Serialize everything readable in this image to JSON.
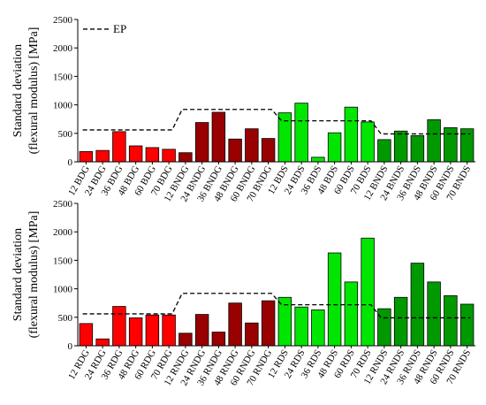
{
  "chart_data": [
    {
      "type": "bar",
      "ylabel_line1": "Standard deviation",
      "ylabel_line2": "(flexural modulus) [MPa]",
      "ylim": [
        0,
        2500
      ],
      "yticks": [
        0,
        500,
        1000,
        1500,
        2000,
        2500
      ],
      "legend": {
        "label": "EP",
        "placement": "top-left"
      },
      "grid": false,
      "categories": [
        "12 BDG",
        "24 BDG",
        "36 BDG",
        "48 BDG",
        "60 BDG",
        "70 BDG",
        "12 BNDG",
        "24 BNDG",
        "36 BNDG",
        "48 BNDG",
        "60 BNDG",
        "70 BNDG",
        "12 BDS",
        "24 BDS",
        "36 BDS",
        "48 BDS",
        "60 BDS",
        "70 BDS",
        "12 BNDS",
        "24 BNDS",
        "36 BNDS",
        "48 BNDS",
        "60 BNDS",
        "70 BNDS"
      ],
      "values": [
        180,
        200,
        530,
        280,
        250,
        220,
        160,
        690,
        870,
        400,
        580,
        410,
        860,
        1030,
        80,
        510,
        960,
        700,
        390,
        540,
        460,
        740,
        600,
        580
      ],
      "colors": [
        "#ff0000",
        "#ff0000",
        "#ff0000",
        "#ff0000",
        "#ff0000",
        "#ff0000",
        "#990000",
        "#990000",
        "#990000",
        "#990000",
        "#990000",
        "#990000",
        "#00e600",
        "#00e600",
        "#00e600",
        "#00e600",
        "#00e600",
        "#00e600",
        "#009900",
        "#009900",
        "#009900",
        "#009900",
        "#009900",
        "#009900"
      ],
      "ep_steps": [
        {
          "from": 0,
          "to": 5,
          "value": 560
        },
        {
          "from": 6,
          "to": 11,
          "value": 920
        },
        {
          "from": 12,
          "to": 17,
          "value": 720
        },
        {
          "from": 18,
          "to": 23,
          "value": 490
        }
      ]
    },
    {
      "type": "bar",
      "ylabel_line1": "Standard deviation",
      "ylabel_line2": "(flexural modulus) [MPa]",
      "ylim": [
        0,
        2500
      ],
      "yticks": [
        0,
        500,
        1000,
        1500,
        2000,
        2500
      ],
      "grid": false,
      "categories": [
        "12 RDG",
        "24 RDG",
        "36 RDG",
        "48 RDG",
        "60 RDG",
        "70 RDG",
        "12 RNDG",
        "24 RNDG",
        "36 RNDG",
        "48 RNDG",
        "60 RNDG",
        "70 RNDG",
        "12 RDS",
        "24 RDS",
        "36 RDS",
        "48 RDS",
        "60 RDS",
        "70 RDS",
        "12 RNDS",
        "24 RNDS",
        "36 RNDS",
        "48 RNDS",
        "60 RNDS",
        "70 RNDS"
      ],
      "values": [
        390,
        120,
        690,
        490,
        540,
        540,
        220,
        550,
        240,
        750,
        400,
        790,
        850,
        680,
        630,
        1630,
        1120,
        1890,
        650,
        850,
        1450,
        1120,
        880,
        730
      ],
      "colors": [
        "#ff0000",
        "#ff0000",
        "#ff0000",
        "#ff0000",
        "#ff0000",
        "#ff0000",
        "#990000",
        "#990000",
        "#990000",
        "#990000",
        "#990000",
        "#990000",
        "#00e600",
        "#00e600",
        "#00e600",
        "#00e600",
        "#00e600",
        "#00e600",
        "#009900",
        "#009900",
        "#009900",
        "#009900",
        "#009900",
        "#009900"
      ],
      "ep_steps": [
        {
          "from": 0,
          "to": 5,
          "value": 560
        },
        {
          "from": 6,
          "to": 11,
          "value": 920
        },
        {
          "from": 12,
          "to": 17,
          "value": 720
        },
        {
          "from": 18,
          "to": 23,
          "value": 490
        }
      ]
    }
  ]
}
